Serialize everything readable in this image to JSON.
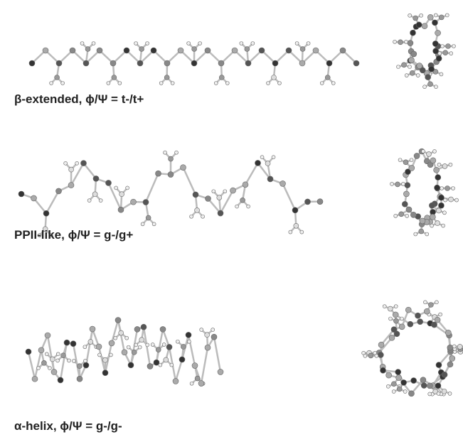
{
  "panels": [
    {
      "caption": "β-extended, ϕ/Ψ = t-/t+"
    },
    {
      "caption": "PPII-like, ϕ/Ψ = g-/g+"
    },
    {
      "caption": "α-helix, ϕ/Ψ = g-/g-"
    }
  ]
}
